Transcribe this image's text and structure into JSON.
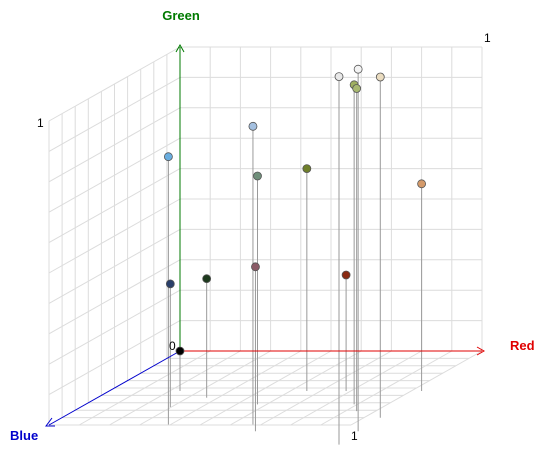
{
  "chart_data": {
    "type": "scatter",
    "dimensions": 3,
    "axes": {
      "x": {
        "label": "Red",
        "range": [
          0,
          1
        ],
        "color": "#e00000"
      },
      "y": {
        "label": "Green",
        "range": [
          0,
          1
        ],
        "color": "#007a00"
      },
      "z": {
        "label": "Blue",
        "range": [
          0,
          1
        ],
        "color": "#0000cc"
      }
    },
    "tick_labels": {
      "origin": "0",
      "x_end": "1",
      "y_end": "1",
      "back_end": "1"
    },
    "grid": true,
    "drop_lines": true,
    "points": [
      {
        "x": 0.0,
        "y": 0.0,
        "z": 0.0,
        "color": "#000000"
      },
      {
        "x": 0.02,
        "y": 0.25,
        "z": 0.12,
        "color": "#2a3f6a"
      },
      {
        "x": 0.07,
        "y": 0.7,
        "z": 0.25,
        "color": "#6aaee0"
      },
      {
        "x": 0.11,
        "y": 0.25,
        "z": 0.05,
        "color": "#1e3a1e"
      },
      {
        "x": 0.3,
        "y": 0.6,
        "z": 0.1,
        "color": "#6f8f7a"
      },
      {
        "x": 0.35,
        "y": 0.8,
        "z": 0.25,
        "color": "#a4c0e0"
      },
      {
        "x": 0.38,
        "y": 0.35,
        "z": 0.3,
        "color": "#8a5a66"
      },
      {
        "x": 0.42,
        "y": 0.6,
        "z": 0.0,
        "color": "#6f7f2a"
      },
      {
        "x": 0.55,
        "y": 0.25,
        "z": 0.0,
        "color": "#8a2a12"
      },
      {
        "x": 0.62,
        "y": 0.9,
        "z": 0.1,
        "color": "#9fb060"
      },
      {
        "x": 0.65,
        "y": 0.9,
        "z": 0.15,
        "color": "#a8b870"
      },
      {
        "x": 0.7,
        "y": 1.0,
        "z": 0.4,
        "color": "#e8e8e8"
      },
      {
        "x": 0.72,
        "y": 1.0,
        "z": 0.3,
        "color": "#f4f4f4"
      },
      {
        "x": 0.75,
        "y": 0.95,
        "z": 0.2,
        "color": "#eadcc0"
      },
      {
        "x": 0.8,
        "y": 0.55,
        "z": 0.0,
        "color": "#d49a6a"
      }
    ]
  }
}
